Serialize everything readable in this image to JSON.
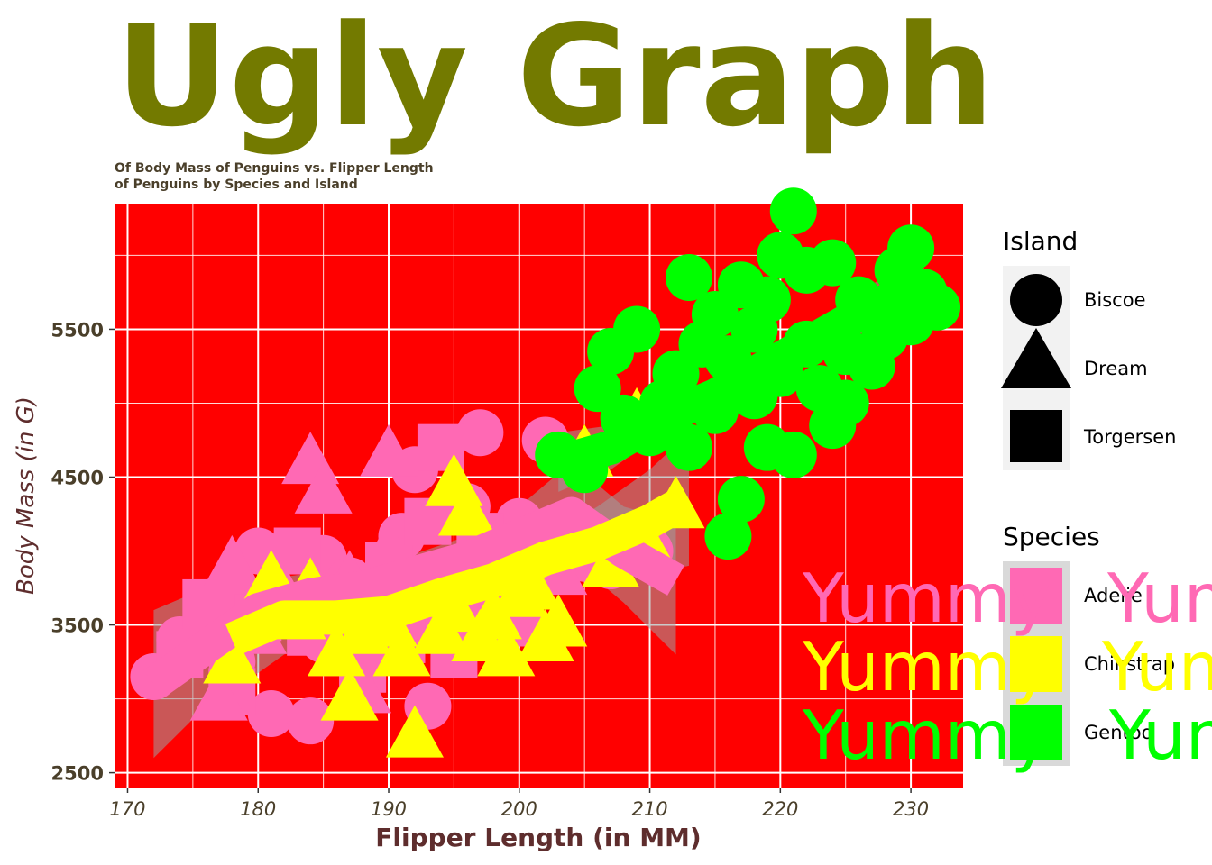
{
  "chart_data": {
    "type": "scatter",
    "title": "Ugly Graph",
    "subtitle_line1": "Of Body Mass of Penguins vs. Flipper Length",
    "subtitle_line2": "of Penguins by Species and Island",
    "xlabel": "Flipper Length (in MM)",
    "ylabel": "Body Mass (in G)",
    "xlim": [
      169,
      234
    ],
    "ylim": [
      2400,
      6350
    ],
    "xticks": [
      "170",
      "180",
      "190",
      "200",
      "210",
      "220",
      "230"
    ],
    "yticks": [
      "2500",
      "3500",
      "4500",
      "5500"
    ],
    "grid": true,
    "legend_placement": "right",
    "colors": {
      "panel": "#ff0000",
      "grid": "#ffffff",
      "title": "#737a00",
      "subtitle": "#4a3f2a",
      "axis_label": "#5e2d2d",
      "tick_text": "#4a3f2a",
      "Adelie": "#ff69b4",
      "Chinstrap": "#ffff00",
      "Gentoo": "#00ff00"
    },
    "island_legend": {
      "title": "Island",
      "entries": [
        {
          "label": "Biscoe",
          "shape": "circle"
        },
        {
          "label": "Dream",
          "shape": "triangle"
        },
        {
          "label": "Torgersen",
          "shape": "square"
        }
      ]
    },
    "species_legend": {
      "title": "Species",
      "entries": [
        "Adelie",
        "Chinstrap",
        "Gentoo"
      ]
    },
    "annotations": [
      "Yummy",
      "Yummy",
      "Yummy"
    ],
    "series": [
      {
        "name": "Adelie",
        "points": [
          [
            172,
            3150,
            "c"
          ],
          [
            174,
            3400,
            "c"
          ],
          [
            176,
            3500,
            "c"
          ],
          [
            178,
            3250,
            "c"
          ],
          [
            178,
            3700,
            "c"
          ],
          [
            180,
            4000,
            "c"
          ],
          [
            181,
            2900,
            "c"
          ],
          [
            183,
            3550,
            "c"
          ],
          [
            184,
            2850,
            "c"
          ],
          [
            185,
            3400,
            "c"
          ],
          [
            185,
            3950,
            "c"
          ],
          [
            187,
            3800,
            "c"
          ],
          [
            189,
            3600,
            "c"
          ],
          [
            190,
            3900,
            "c"
          ],
          [
            191,
            4100,
            "c"
          ],
          [
            192,
            4550,
            "c"
          ],
          [
            193,
            3500,
            "c"
          ],
          [
            193,
            2950,
            "c"
          ],
          [
            195,
            3700,
            "c"
          ],
          [
            196,
            4300,
            "c"
          ],
          [
            197,
            4800,
            "c"
          ],
          [
            198,
            3450,
            "c"
          ],
          [
            199,
            3900,
            "c"
          ],
          [
            200,
            4200,
            "c"
          ],
          [
            202,
            4750,
            "c"
          ],
          [
            205,
            3950,
            "c"
          ],
          [
            207,
            3900,
            "c"
          ],
          [
            210,
            4000,
            "c"
          ],
          [
            174,
            3300,
            "s"
          ],
          [
            176,
            3650,
            "s"
          ],
          [
            178,
            3050,
            "s"
          ],
          [
            180,
            3550,
            "s"
          ],
          [
            183,
            4000,
            "s"
          ],
          [
            184,
            3450,
            "s"
          ],
          [
            186,
            3700,
            "s"
          ],
          [
            188,
            3200,
            "s"
          ],
          [
            190,
            3900,
            "s"
          ],
          [
            191,
            3400,
            "s"
          ],
          [
            193,
            4200,
            "s"
          ],
          [
            194,
            4700,
            "s"
          ],
          [
            195,
            3300,
            "s"
          ],
          [
            196,
            3800,
            "s"
          ],
          [
            197,
            4100,
            "s"
          ],
          [
            198,
            3600,
            "s"
          ],
          [
            177,
            3000,
            "t"
          ],
          [
            178,
            3900,
            "t"
          ],
          [
            180,
            3450,
            "t"
          ],
          [
            182,
            3700,
            "t"
          ],
          [
            184,
            4600,
            "t"
          ],
          [
            185,
            4400,
            "t"
          ],
          [
            186,
            3300,
            "t"
          ],
          [
            187,
            3800,
            "t"
          ],
          [
            188,
            3050,
            "t"
          ],
          [
            190,
            4650,
            "t"
          ],
          [
            190,
            4000,
            "t"
          ],
          [
            191,
            3550,
            "t"
          ],
          [
            193,
            3700,
            "t"
          ],
          [
            195,
            3500,
            "t"
          ],
          [
            196,
            3400,
            "t"
          ],
          [
            200,
            3650,
            "t"
          ],
          [
            201,
            3500,
            "t"
          ],
          [
            203,
            3850,
            "t"
          ]
        ],
        "smooth": [
          [
            172,
            3100
          ],
          [
            176,
            3350
          ],
          [
            180,
            3600
          ],
          [
            184,
            3700
          ],
          [
            188,
            3750
          ],
          [
            192,
            3850
          ],
          [
            196,
            3950
          ],
          [
            200,
            4100
          ],
          [
            204,
            4250
          ],
          [
            208,
            4000
          ],
          [
            212,
            3800
          ]
        ],
        "band": [
          [
            172,
            3600,
            2600
          ],
          [
            176,
            3750,
            2950
          ],
          [
            180,
            3800,
            3350
          ],
          [
            184,
            3850,
            3550
          ],
          [
            188,
            3880,
            3620
          ],
          [
            192,
            3980,
            3720
          ],
          [
            196,
            4100,
            3800
          ],
          [
            200,
            4300,
            3900
          ],
          [
            204,
            4600,
            3950
          ],
          [
            208,
            4300,
            3650
          ],
          [
            212,
            4200,
            3300
          ]
        ]
      },
      {
        "name": "Chinstrap",
        "points": [
          [
            178,
            3250,
            "t"
          ],
          [
            181,
            3800,
            "t"
          ],
          [
            183,
            3550,
            "t"
          ],
          [
            184,
            3750,
            "t"
          ],
          [
            186,
            3300,
            "t"
          ],
          [
            187,
            3000,
            "t"
          ],
          [
            188,
            3450,
            "t"
          ],
          [
            189,
            3650,
            "t"
          ],
          [
            190,
            3500,
            "t"
          ],
          [
            191,
            3300,
            "t"
          ],
          [
            192,
            2750,
            "t"
          ],
          [
            193,
            3700,
            "t"
          ],
          [
            194,
            3450,
            "t"
          ],
          [
            195,
            4450,
            "t"
          ],
          [
            195,
            3600,
            "t"
          ],
          [
            196,
            4250,
            "t"
          ],
          [
            197,
            3400,
            "t"
          ],
          [
            198,
            3550,
            "t"
          ],
          [
            199,
            3300,
            "t"
          ],
          [
            200,
            3700,
            "t"
          ],
          [
            201,
            3750,
            "t"
          ],
          [
            202,
            3400,
            "t"
          ],
          [
            203,
            3500,
            "t"
          ],
          [
            205,
            4650,
            "t"
          ],
          [
            207,
            3900,
            "t"
          ],
          [
            209,
            4900,
            "t"
          ],
          [
            210,
            4000,
            "t"
          ],
          [
            212,
            4300,
            "t"
          ]
        ],
        "smooth": [
          [
            178,
            3400
          ],
          [
            182,
            3550
          ],
          [
            186,
            3550
          ],
          [
            190,
            3580
          ],
          [
            194,
            3700
          ],
          [
            198,
            3800
          ],
          [
            202,
            3950
          ],
          [
            206,
            4050
          ],
          [
            210,
            4200
          ],
          [
            213,
            4350
          ]
        ],
        "band": [
          [
            178,
            3750,
            3050
          ],
          [
            182,
            3750,
            3300
          ],
          [
            186,
            3700,
            3400
          ],
          [
            190,
            3700,
            3450
          ],
          [
            194,
            3800,
            3600
          ],
          [
            198,
            3950,
            3650
          ],
          [
            202,
            4100,
            3800
          ],
          [
            206,
            4300,
            3800
          ],
          [
            210,
            4550,
            3850
          ],
          [
            213,
            4800,
            3900
          ]
        ]
      },
      {
        "name": "Gentoo",
        "points": [
          [
            203,
            4650,
            "c"
          ],
          [
            205,
            4550,
            "c"
          ],
          [
            206,
            5100,
            "c"
          ],
          [
            207,
            5350,
            "c"
          ],
          [
            208,
            4900,
            "c"
          ],
          [
            209,
            5500,
            "c"
          ],
          [
            210,
            4800,
            "c"
          ],
          [
            211,
            5000,
            "c"
          ],
          [
            212,
            5200,
            "c"
          ],
          [
            213,
            5850,
            "c"
          ],
          [
            213,
            4700,
            "c"
          ],
          [
            214,
            5400,
            "c"
          ],
          [
            215,
            4950,
            "c"
          ],
          [
            215,
            5600,
            "c"
          ],
          [
            216,
            4100,
            "c"
          ],
          [
            216,
            5300,
            "c"
          ],
          [
            217,
            4350,
            "c"
          ],
          [
            217,
            5800,
            "c"
          ],
          [
            218,
            5050,
            "c"
          ],
          [
            218,
            5500,
            "c"
          ],
          [
            219,
            4700,
            "c"
          ],
          [
            219,
            5700,
            "c"
          ],
          [
            220,
            5200,
            "c"
          ],
          [
            220,
            6000,
            "c"
          ],
          [
            221,
            4650,
            "c"
          ],
          [
            221,
            6300,
            "c"
          ],
          [
            222,
            5400,
            "c"
          ],
          [
            222,
            5900,
            "c"
          ],
          [
            223,
            5100,
            "c"
          ],
          [
            224,
            4850,
            "c"
          ],
          [
            224,
            5950,
            "c"
          ],
          [
            225,
            5000,
            "c"
          ],
          [
            225,
            5350,
            "c"
          ],
          [
            226,
            5700,
            "c"
          ],
          [
            227,
            5250,
            "c"
          ],
          [
            228,
            5450,
            "c"
          ],
          [
            229,
            5900,
            "c"
          ],
          [
            230,
            6050,
            "c"
          ],
          [
            230,
            5550,
            "c"
          ],
          [
            231,
            5750,
            "c"
          ],
          [
            232,
            5650,
            "c"
          ]
        ],
        "smooth": [
          [
            203,
            4600
          ],
          [
            207,
            4700
          ],
          [
            211,
            4900
          ],
          [
            215,
            5050
          ],
          [
            219,
            5250
          ],
          [
            223,
            5450
          ],
          [
            227,
            5650
          ],
          [
            231,
            5800
          ]
        ],
        "band": [
          [
            203,
            4800,
            4400
          ],
          [
            207,
            4850,
            4550
          ],
          [
            211,
            5000,
            4800
          ],
          [
            215,
            5150,
            4950
          ],
          [
            219,
            5350,
            5150
          ],
          [
            223,
            5550,
            5350
          ],
          [
            227,
            5800,
            5500
          ],
          [
            231,
            6050,
            5550
          ]
        ]
      }
    ]
  }
}
